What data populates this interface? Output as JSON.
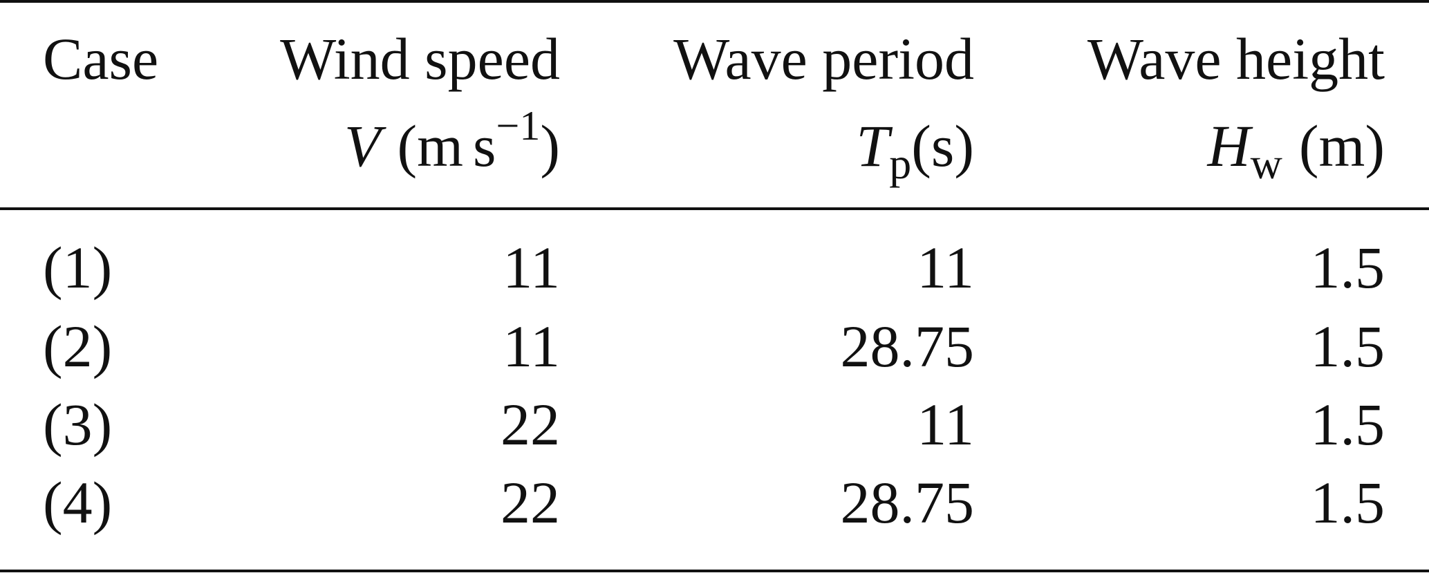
{
  "table": {
    "header": {
      "case": "Case",
      "wind_speed": {
        "title": "Wind speed",
        "symbol": "V",
        "unit_open": "(m",
        "unit_s": "s",
        "unit_exp": "−1",
        "unit_close": ")"
      },
      "wave_period": {
        "title": "Wave period",
        "symbol": "T",
        "subscript": "p",
        "unit": "(s)"
      },
      "wave_height": {
        "title": "Wave height",
        "symbol": "H",
        "subscript": "w",
        "unit": "(m)"
      }
    },
    "rows": [
      {
        "case": "(1)",
        "wind_speed": "11",
        "wave_period": "11",
        "wave_height": "1.5"
      },
      {
        "case": "(2)",
        "wind_speed": "11",
        "wave_period": "28.75",
        "wave_height": "1.5"
      },
      {
        "case": "(3)",
        "wind_speed": "22",
        "wave_period": "11",
        "wave_height": "1.5"
      },
      {
        "case": "(4)",
        "wind_speed": "22",
        "wave_period": "28.75",
        "wave_height": "1.5"
      }
    ]
  }
}
